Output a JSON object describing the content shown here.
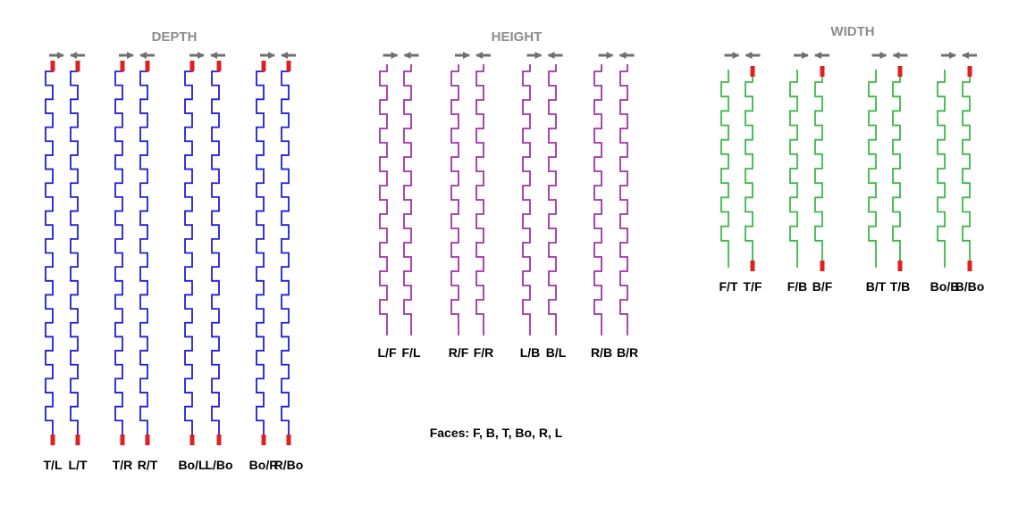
{
  "colors": {
    "depth": "#1f1fd6",
    "height": "#a032a8",
    "width": "#3cb84a",
    "electrode": "#e02020",
    "arrow": "#6f6f6f",
    "title": "#8c8c8c"
  },
  "groups": [
    {
      "id": "depth",
      "title": "DEPTH",
      "color_key": "depth",
      "wires": [
        {
          "label": "T/L"
        },
        {
          "label": "L/T"
        },
        {
          "label": "T/R"
        },
        {
          "label": "R/T"
        },
        {
          "label": "Bo/L"
        },
        {
          "label": "L/Bo"
        },
        {
          "label": "Bo/R"
        },
        {
          "label": "R/Bo"
        }
      ]
    },
    {
      "id": "height",
      "title": "HEIGHT",
      "color_key": "height",
      "wires": [
        {
          "label": "L/F"
        },
        {
          "label": "F/L"
        },
        {
          "label": "R/F"
        },
        {
          "label": "F/R"
        },
        {
          "label": "L/B"
        },
        {
          "label": "B/L"
        },
        {
          "label": "R/B"
        },
        {
          "label": "B/R"
        }
      ]
    },
    {
      "id": "width",
      "title": "WIDTH",
      "color_key": "width",
      "wires": [
        {
          "label": "F/T"
        },
        {
          "label": "T/F"
        },
        {
          "label": "F/B"
        },
        {
          "label": "B/F"
        },
        {
          "label": "B/T"
        },
        {
          "label": "T/B"
        },
        {
          "label": "Bo/B"
        },
        {
          "label": "B/Bo"
        }
      ]
    }
  ],
  "caption": "Faces: F, B, T, Bo, R, L"
}
